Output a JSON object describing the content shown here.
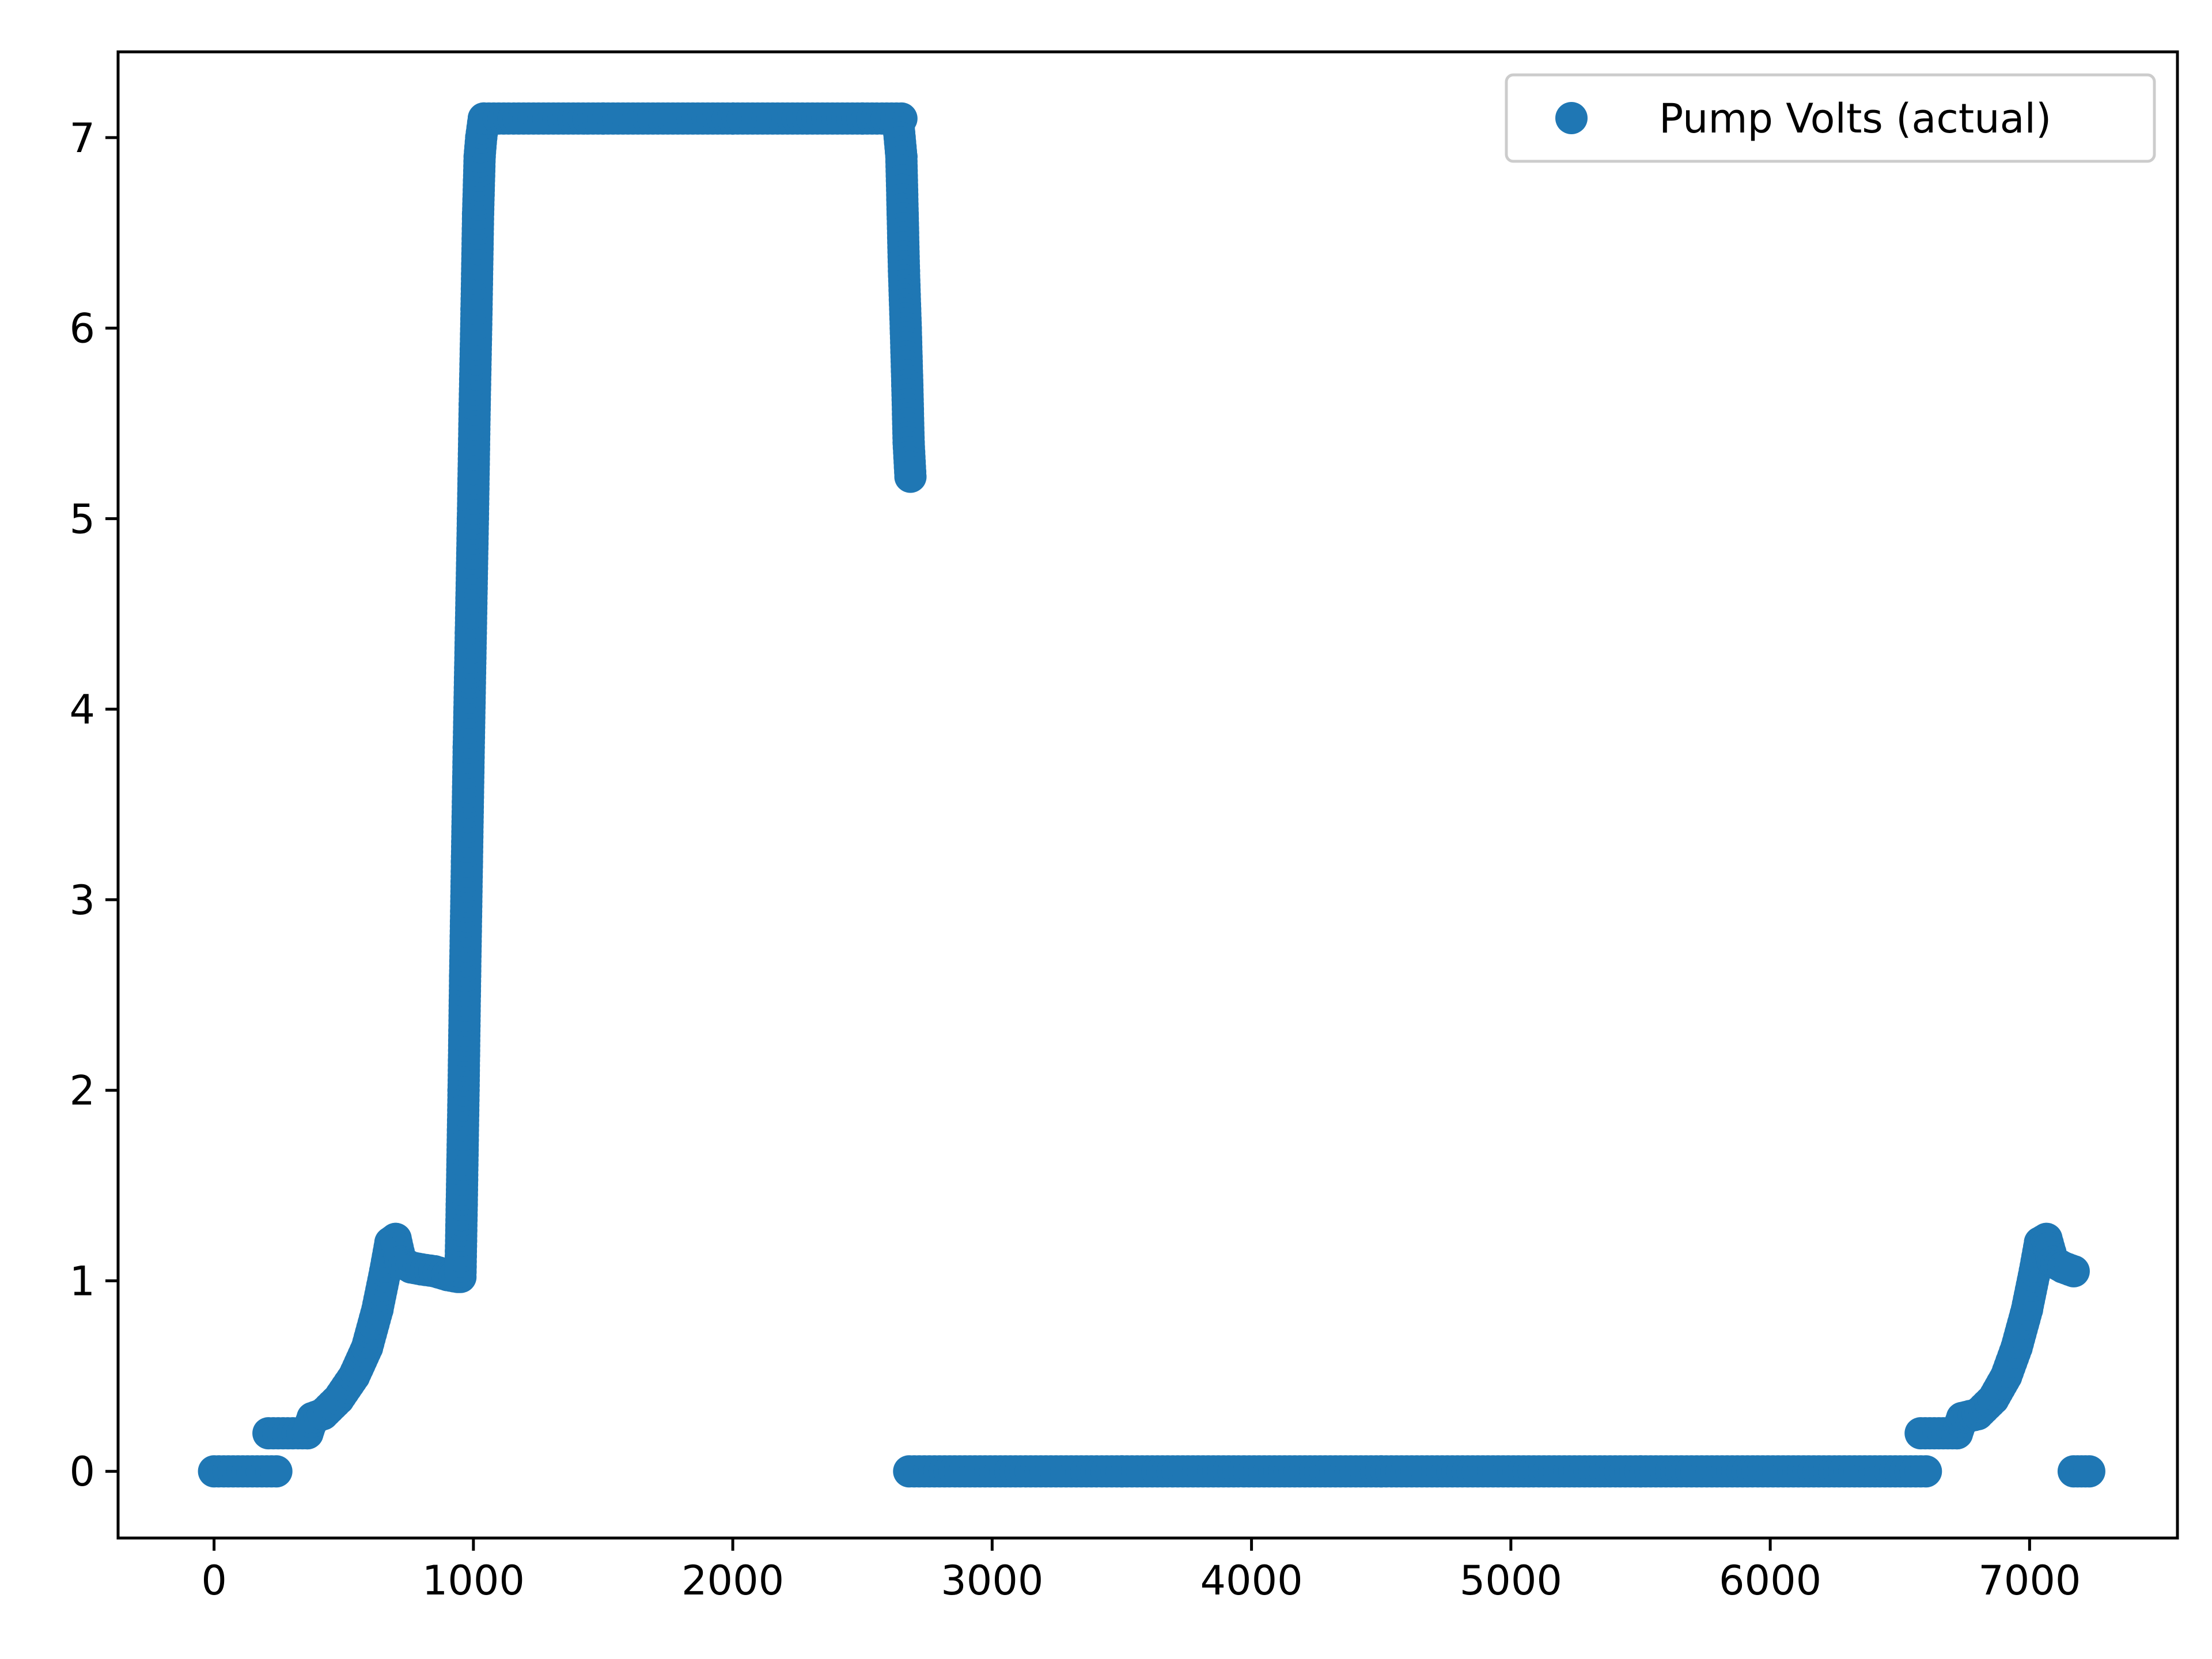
{
  "chart_data": {
    "type": "scatter",
    "title": "",
    "xlabel": "",
    "ylabel": "",
    "xlim": [
      -370,
      7570
    ],
    "ylim": [
      -0.35,
      7.45
    ],
    "x_ticks": [
      0,
      1000,
      2000,
      3000,
      4000,
      5000,
      6000,
      7000
    ],
    "y_ticks": [
      0,
      1,
      2,
      3,
      4,
      5,
      6,
      7
    ],
    "grid": false,
    "legend": {
      "position": "upper-right"
    },
    "series": [
      {
        "name": "Pump Volts (actual)",
        "color": "#1f77b4",
        "marker": "circle",
        "segments": [
          [
            [
              0,
              0
            ],
            [
              240,
              0
            ]
          ],
          [
            [
              210,
              0.2
            ],
            [
              360,
              0.2
            ]
          ],
          [
            [
              360,
              0.2
            ],
            [
              380,
              0.28
            ],
            [
              420,
              0.3
            ],
            [
              480,
              0.38
            ],
            [
              540,
              0.5
            ],
            [
              590,
              0.65
            ],
            [
              630,
              0.85
            ],
            [
              660,
              1.05
            ],
            [
              680,
              1.2
            ],
            [
              700,
              1.22
            ],
            [
              720,
              1.1
            ],
            [
              760,
              1.07
            ],
            [
              800,
              1.06
            ],
            [
              850,
              1.05
            ],
            [
              900,
              1.03
            ],
            [
              940,
              1.02
            ]
          ],
          [
            [
              950,
              1.02
            ],
            [
              955,
              1.4
            ],
            [
              962,
              2.0
            ],
            [
              968,
              2.6
            ],
            [
              975,
              3.2
            ],
            [
              982,
              3.8
            ],
            [
              990,
              4.4
            ],
            [
              998,
              5.0
            ],
            [
              1005,
              5.6
            ],
            [
              1012,
              6.1
            ],
            [
              1018,
              6.6
            ],
            [
              1024,
              6.9
            ],
            [
              1030,
              7.0
            ],
            [
              1040,
              7.1
            ]
          ],
          [
            [
              1040,
              7.1
            ],
            [
              1500,
              7.1
            ],
            [
              2000,
              7.1
            ],
            [
              2500,
              7.1
            ],
            [
              2650,
              7.1
            ]
          ],
          [
            [
              2640,
              7.05
            ],
            [
              2650,
              6.9
            ],
            [
              2655,
              6.6
            ],
            [
              2660,
              6.3
            ],
            [
              2667,
              6.0
            ],
            [
              2673,
              5.7
            ],
            [
              2678,
              5.4
            ],
            [
              2685,
              5.22
            ]
          ],
          [
            [
              2680,
              0
            ],
            [
              3500,
              0
            ],
            [
              4500,
              0
            ],
            [
              5500,
              0
            ],
            [
              6600,
              0
            ]
          ],
          [
            [
              6580,
              0.2
            ],
            [
              6720,
              0.2
            ]
          ],
          [
            [
              6720,
              0.2
            ],
            [
              6740,
              0.28
            ],
            [
              6800,
              0.3
            ],
            [
              6860,
              0.38
            ],
            [
              6910,
              0.5
            ],
            [
              6950,
              0.65
            ],
            [
              6990,
              0.85
            ],
            [
              7020,
              1.05
            ],
            [
              7040,
              1.2
            ],
            [
              7065,
              1.22
            ],
            [
              7090,
              1.1
            ],
            [
              7130,
              1.07
            ],
            [
              7170,
              1.05
            ]
          ],
          [
            [
              7170,
              0
            ],
            [
              7230,
              0
            ]
          ]
        ]
      }
    ]
  }
}
